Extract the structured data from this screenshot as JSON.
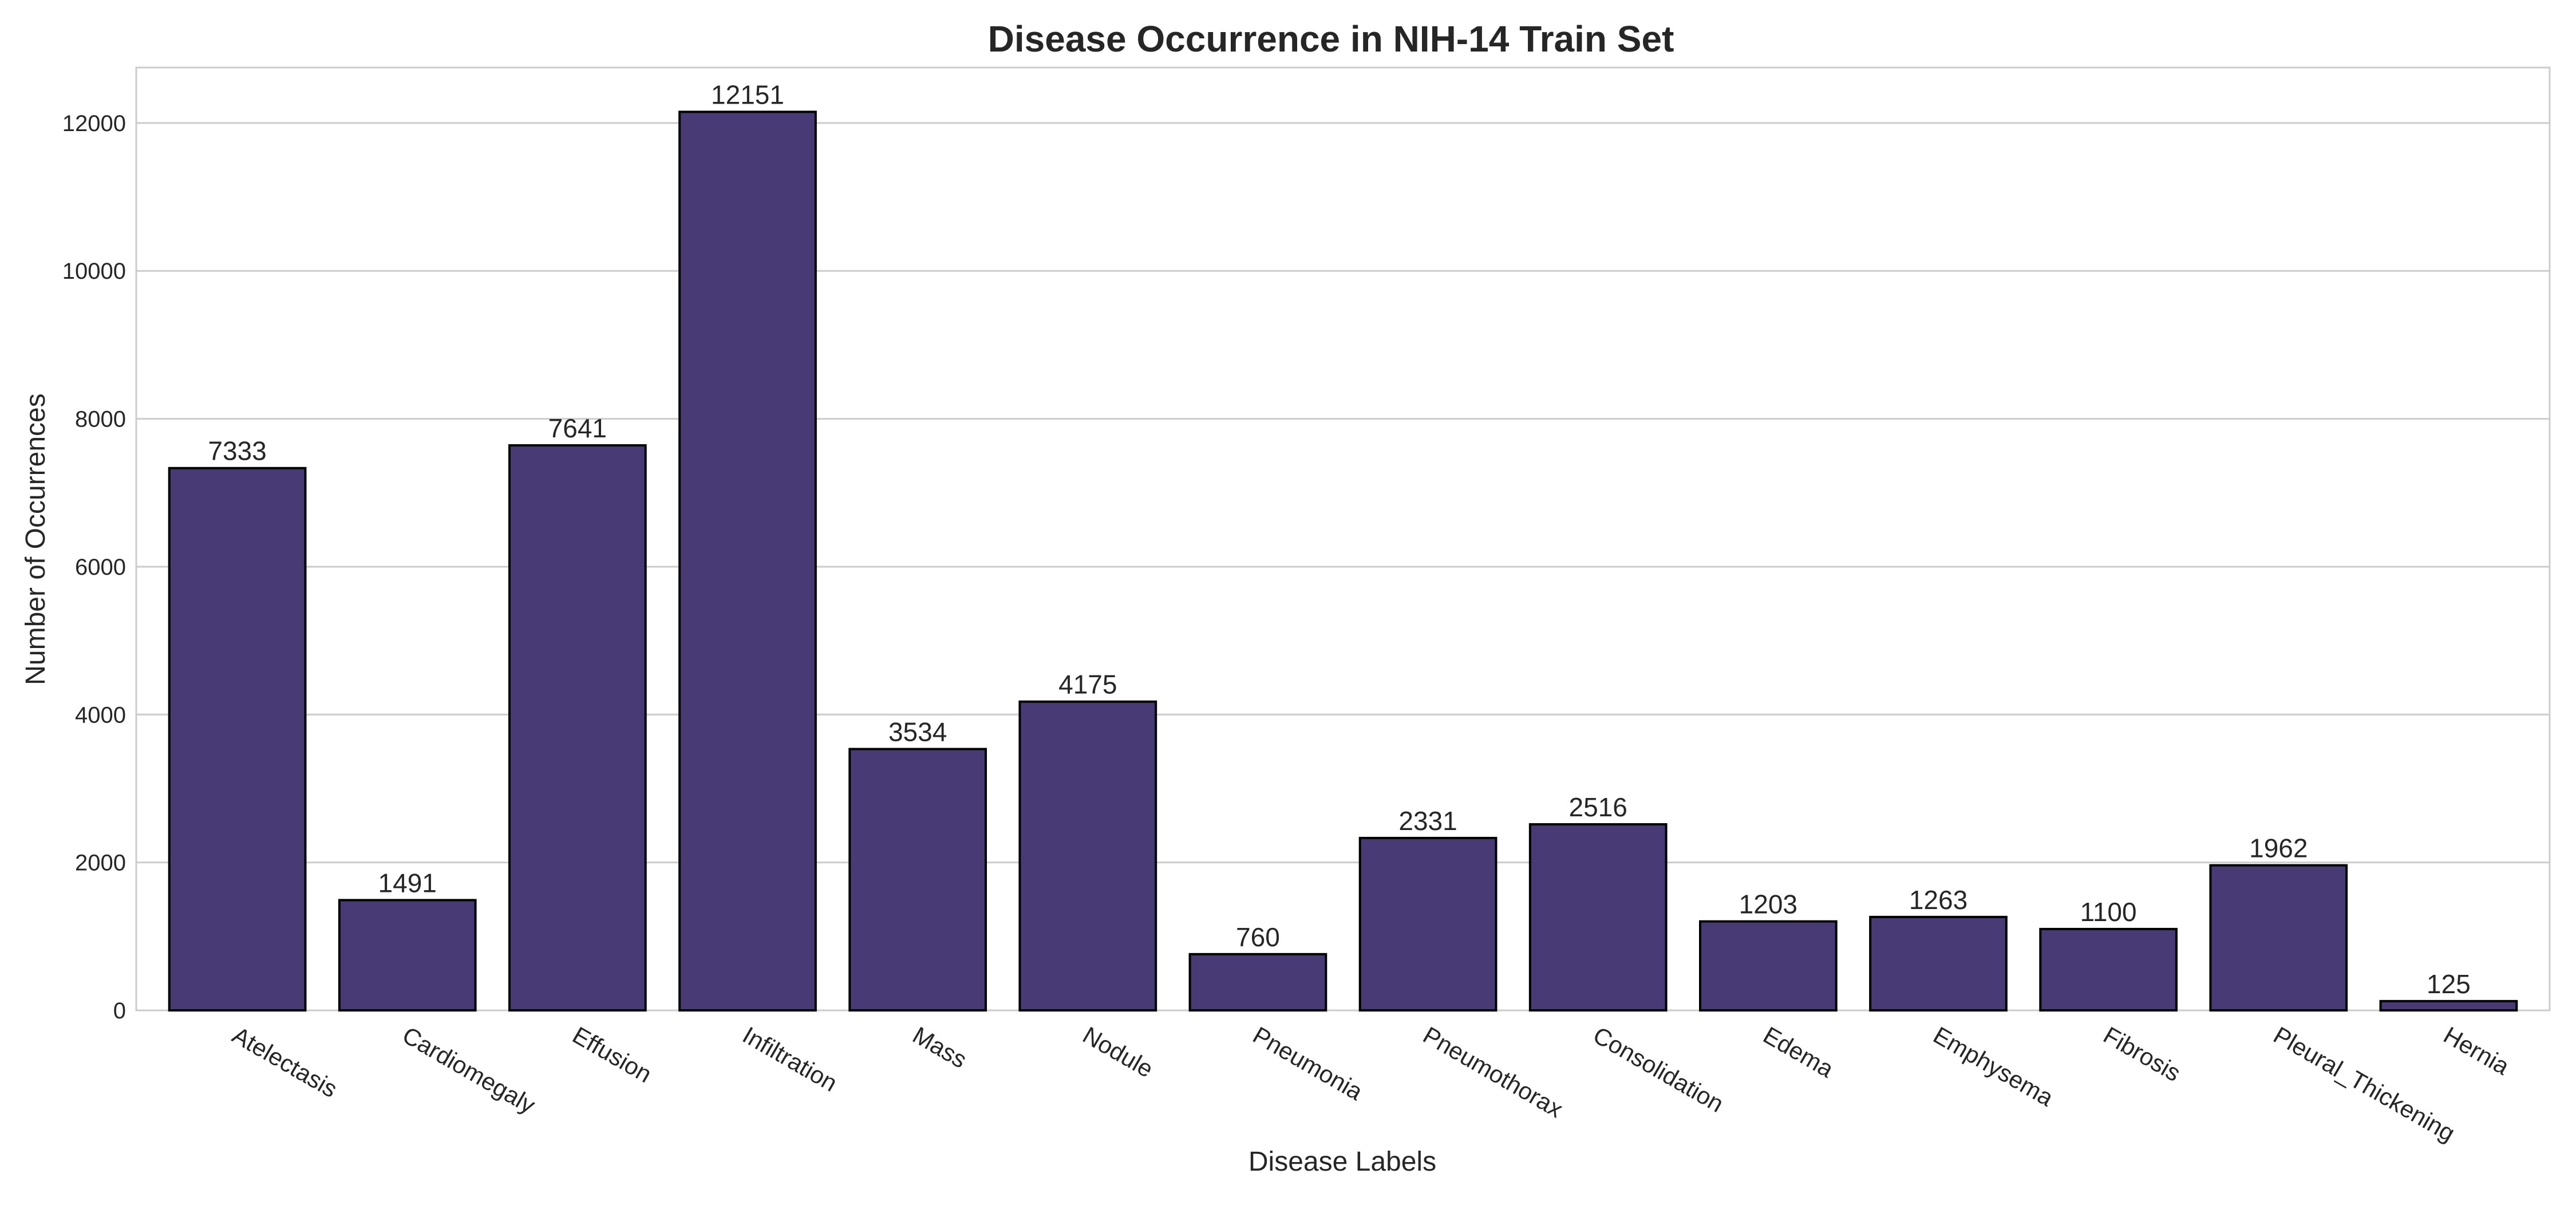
{
  "chart_data": {
    "type": "bar",
    "title": "Disease Occurrence in NIH-14 Train Set",
    "xlabel": "Disease Labels",
    "ylabel": "Number of Occurrences",
    "categories": [
      "Atelectasis",
      "Cardiomegaly",
      "Effusion",
      "Infiltration",
      "Mass",
      "Nodule",
      "Pneumonia",
      "Pneumothorax",
      "Consolidation",
      "Edema",
      "Emphysema",
      "Fibrosis",
      "Pleural_Thickening",
      "Hernia"
    ],
    "values": [
      7333,
      1491,
      7641,
      12151,
      3534,
      4175,
      760,
      2331,
      2516,
      1203,
      1263,
      1100,
      1962,
      125
    ],
    "data_labels": [
      "7333",
      "1491",
      "7641",
      "12151",
      "3534",
      "4175",
      "760",
      "2331",
      "2516",
      "1203",
      "1263",
      "1100",
      "1962",
      "125"
    ],
    "yticks": [
      0,
      2000,
      4000,
      6000,
      8000,
      10000,
      12000
    ],
    "ytick_labels": [
      "0",
      "2000",
      "4000",
      "6000",
      "8000",
      "10000",
      "12000"
    ],
    "ylim": [
      0,
      12750
    ],
    "grid": "horizontal",
    "bar_color": "#483a74",
    "bar_edge_color": "#000000"
  }
}
